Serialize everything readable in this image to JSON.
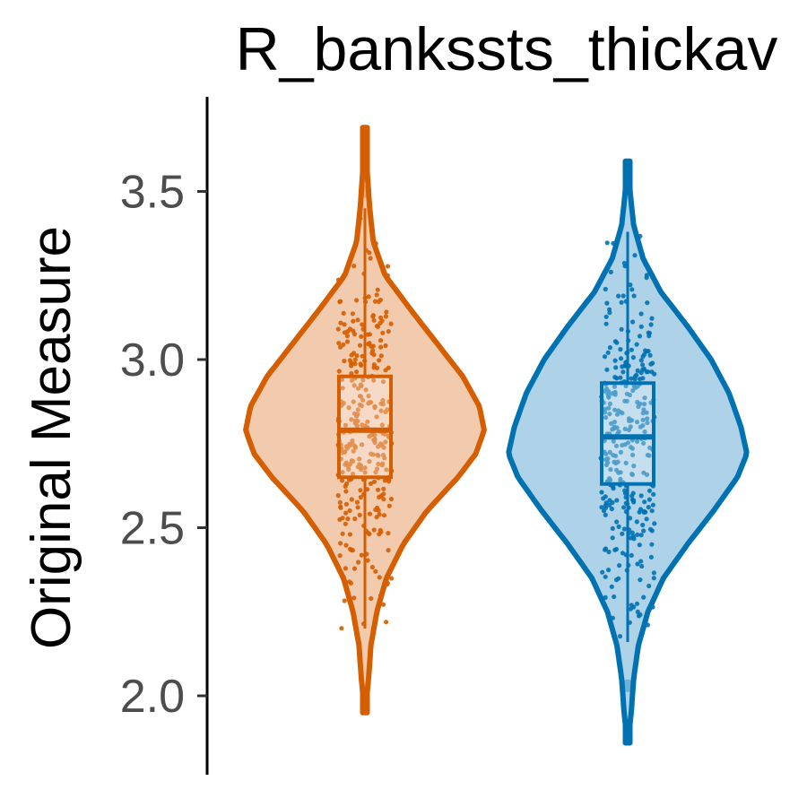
{
  "chart_data": {
    "type": "violin",
    "title": "R_bankssts_thickav",
    "xlabel": "",
    "ylabel": "Original Measure",
    "ylim": [
      1.85,
      3.75
    ],
    "yticks": [
      2.0,
      2.5,
      3.0,
      3.5
    ],
    "ytick_labels": [
      "2.0",
      "2.5",
      "3.0",
      "3.5"
    ],
    "grid": false,
    "legend": "none",
    "series": [
      {
        "color": "#D55E00",
        "fill": "#F2CBAF",
        "violin_min": 1.95,
        "violin_max": 3.69,
        "density_profile": [
          [
            1.95,
            0.0
          ],
          [
            2.05,
            0.03
          ],
          [
            2.15,
            0.05
          ],
          [
            2.25,
            0.1
          ],
          [
            2.35,
            0.18
          ],
          [
            2.45,
            0.32
          ],
          [
            2.55,
            0.52
          ],
          [
            2.65,
            0.78
          ],
          [
            2.72,
            0.93
          ],
          [
            2.79,
            1.0
          ],
          [
            2.86,
            0.96
          ],
          [
            2.95,
            0.82
          ],
          [
            3.05,
            0.6
          ],
          [
            3.15,
            0.38
          ],
          [
            3.25,
            0.17
          ],
          [
            3.35,
            0.07
          ],
          [
            3.45,
            0.04
          ],
          [
            3.55,
            0.02
          ],
          [
            3.69,
            0.0
          ]
        ],
        "box": {
          "q1": 2.65,
          "median": 2.79,
          "q3": 2.95
        },
        "whisker": [
          2.2,
          3.45
        ],
        "outliers": [
          3.5
        ]
      },
      {
        "color": "#0072B2",
        "fill": "#AED2E8",
        "violin_min": 1.86,
        "violin_max": 3.59,
        "density_profile": [
          [
            1.86,
            0.0
          ],
          [
            1.95,
            0.03
          ],
          [
            2.05,
            0.05
          ],
          [
            2.15,
            0.09
          ],
          [
            2.25,
            0.17
          ],
          [
            2.35,
            0.3
          ],
          [
            2.45,
            0.5
          ],
          [
            2.55,
            0.72
          ],
          [
            2.65,
            0.92
          ],
          [
            2.72,
            1.0
          ],
          [
            2.8,
            0.95
          ],
          [
            2.9,
            0.85
          ],
          [
            3.0,
            0.7
          ],
          [
            3.1,
            0.5
          ],
          [
            3.2,
            0.28
          ],
          [
            3.3,
            0.13
          ],
          [
            3.4,
            0.05
          ],
          [
            3.5,
            0.02
          ],
          [
            3.59,
            0.0
          ]
        ],
        "box": {
          "q1": 2.63,
          "median": 2.77,
          "q3": 2.93
        },
        "whisker": [
          2.16,
          3.38
        ],
        "outliers": [
          2.03
        ]
      }
    ]
  }
}
